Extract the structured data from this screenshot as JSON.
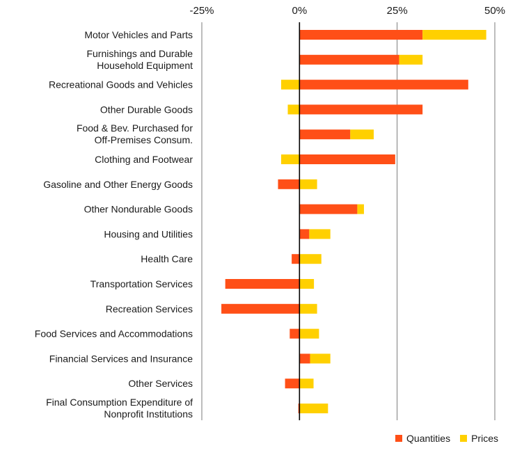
{
  "chart_data": {
    "type": "bar",
    "orientation": "horizontal",
    "stacked": true,
    "title": "",
    "xlabel": "",
    "ylabel": "",
    "xlim": [
      -25,
      50
    ],
    "x_ticks": [
      -25,
      0,
      25,
      50
    ],
    "x_tick_labels": [
      "-25%",
      "0%",
      "25%",
      "50%"
    ],
    "grid": "vertical lines at ticks",
    "legend_position": "bottom-right",
    "categories": [
      [
        "Motor Vehicles and Parts"
      ],
      [
        "Furnishings and Durable",
        "Household Equipment"
      ],
      [
        "Recreational Goods and Vehicles"
      ],
      [
        "Other Durable Goods"
      ],
      [
        "Food & Bev. Purchased for",
        "Off-Premises Consum."
      ],
      [
        "Clothing and Footwear"
      ],
      [
        "Gasoline and Other Energy Goods"
      ],
      [
        "Other Nondurable Goods"
      ],
      [
        "Housing and Utilities"
      ],
      [
        "Health Care"
      ],
      [
        "Transportation Services"
      ],
      [
        "Recreation Services"
      ],
      [
        "Food Services and Accommodations"
      ],
      [
        "Financial Services and Insurance"
      ],
      [
        "Other Services"
      ],
      [
        "Final Consumption Expenditure of",
        "Nonprofit Institutions"
      ]
    ],
    "series": [
      {
        "name": "Quantities",
        "color": "#ff4f17",
        "values": [
          31.5,
          25.5,
          43.2,
          31.5,
          13.0,
          24.5,
          -5.5,
          14.8,
          2.5,
          -2.0,
          -19.0,
          -20.0,
          -2.5,
          2.7,
          -3.7,
          -0.3
        ]
      },
      {
        "name": "Prices",
        "color": "#ffd000",
        "values": [
          16.3,
          6.0,
          -4.7,
          -3.0,
          6.0,
          -4.7,
          4.5,
          1.7,
          5.4,
          5.6,
          3.7,
          4.5,
          5.0,
          5.2,
          3.6,
          7.3
        ]
      }
    ]
  },
  "legend": {
    "items": [
      {
        "label": "Quantities",
        "color": "#ff4f17"
      },
      {
        "label": "Prices",
        "color": "#ffd000"
      }
    ]
  }
}
